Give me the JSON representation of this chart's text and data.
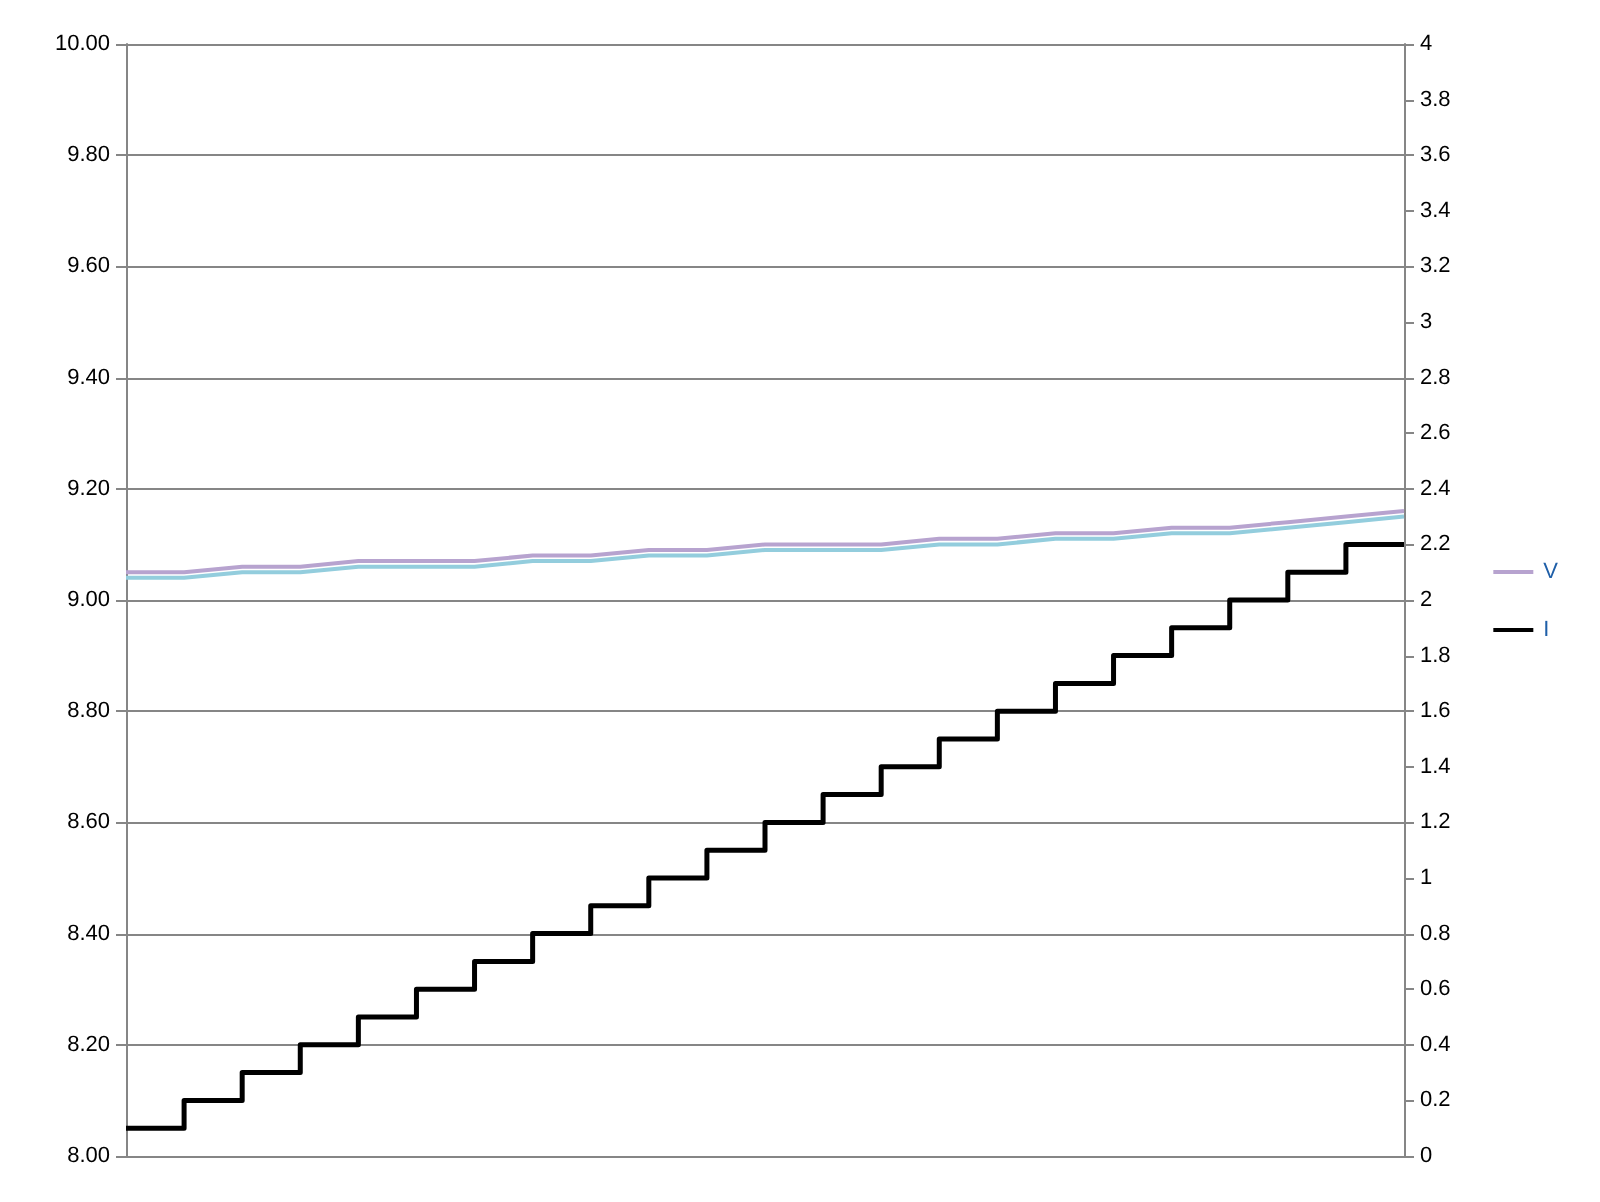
{
  "chart_data": {
    "type": "line",
    "categories": [
      null,
      null,
      null,
      null,
      null,
      null,
      null,
      null,
      null,
      null,
      null,
      null,
      null,
      null,
      null,
      null,
      null,
      null,
      null,
      null,
      null,
      null,
      null
    ],
    "series": [
      {
        "name": "V",
        "color": "#b7a3cf",
        "values": [
          9.05,
          9.05,
          9.06,
          9.06,
          9.07,
          9.07,
          9.07,
          9.08,
          9.08,
          9.09,
          9.09,
          9.1,
          9.1,
          9.1,
          9.11,
          9.11,
          9.12,
          9.12,
          9.13,
          9.13,
          9.14,
          9.15,
          9.16
        ]
      },
      {
        "color": "#93cddd",
        "values": [
          9.04,
          9.04,
          9.05,
          9.05,
          9.06,
          9.06,
          9.06,
          9.07,
          9.07,
          9.08,
          9.08,
          9.09,
          9.09,
          9.09,
          9.1,
          9.1,
          9.11,
          9.11,
          9.12,
          9.12,
          9.13,
          9.14,
          9.15
        ]
      },
      {
        "name": "I",
        "type": "step",
        "axis": "y2",
        "color": "#000000",
        "values": [
          0.1,
          0.2,
          0.3,
          0.4,
          0.5,
          0.6,
          0.7,
          0.8,
          0.9,
          1,
          1.1,
          1.2,
          1.3,
          1.4,
          1.5,
          1.6,
          1.7,
          1.8,
          1.9,
          2,
          2.1,
          2.2,
          2.2
        ]
      }
    ],
    "ylim": [
      8,
      10
    ],
    "yticks": [
      {
        "value": 8,
        "label": "8.00"
      },
      {
        "value": 8.2,
        "label": "8.20"
      },
      {
        "value": 8.4,
        "label": "8.40"
      },
      {
        "value": 8.6,
        "label": "8.60"
      },
      {
        "value": 8.8,
        "label": "8.80"
      },
      {
        "value": 9,
        "label": "9.00"
      },
      {
        "value": 9.2,
        "label": "9.20"
      },
      {
        "value": 9.4,
        "label": "9.40"
      },
      {
        "value": 9.6,
        "label": "9.60"
      },
      {
        "value": 9.8,
        "label": "9.80"
      },
      {
        "value": 10,
        "label": "10.00"
      }
    ],
    "y2lim": [
      0,
      4
    ],
    "y2ticks": [
      0,
      0.2,
      0.4,
      0.6,
      0.8,
      1,
      1.2,
      1.4,
      1.6,
      1.8,
      2,
      2.2,
      2.4,
      2.6,
      2.8,
      3,
      3.2,
      3.4,
      3.6,
      3.8,
      4
    ],
    "grid": "y",
    "legend": "right",
    "marker": "none"
  }
}
